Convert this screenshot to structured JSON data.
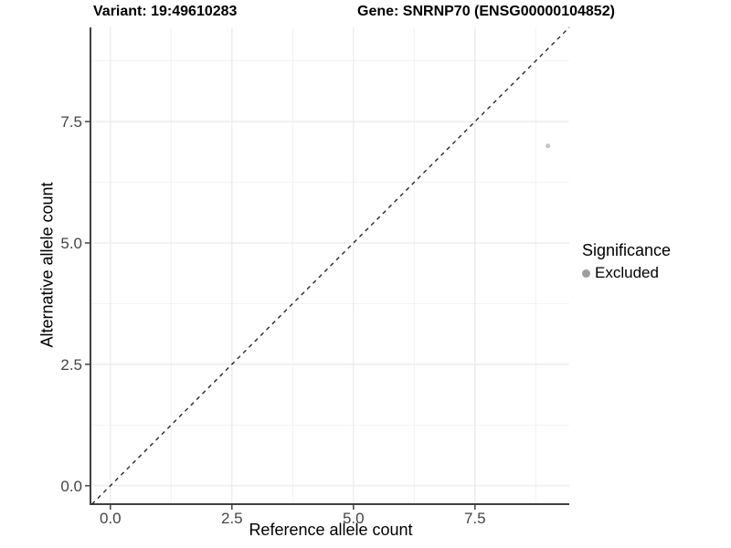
{
  "titles": {
    "variant": "Variant: 19:49610283",
    "gene": "Gene: SNRNP70 (ENSG00000104852)"
  },
  "chart_data": {
    "type": "scatter",
    "xlabel": "Reference allele count",
    "ylabel": "Alternative allele count",
    "xlim": [
      -0.41,
      9.44
    ],
    "ylim": [
      -0.38,
      9.44
    ],
    "x_ticks": [
      0.0,
      2.5,
      5.0,
      7.5
    ],
    "y_ticks": [
      0.0,
      2.5,
      5.0,
      7.5
    ],
    "x_minor_ticks": [
      1.25,
      3.75,
      6.25,
      8.75
    ],
    "y_minor_ticks": [
      1.25,
      3.75,
      6.25,
      8.75
    ],
    "grid": true,
    "points": [
      {
        "x": 9,
        "y": 7,
        "series": "Excluded"
      }
    ],
    "reference_line": {
      "type": "identity",
      "equation": "y = x",
      "style": "dashed"
    },
    "legend": {
      "title": "Significance",
      "position": "right",
      "entries": [
        {
          "label": "Excluded",
          "color": "#9e9e9e"
        }
      ]
    }
  },
  "colors": {
    "background": "#ffffff",
    "grid_major": "#e9e9e9",
    "grid_minor": "#f2f2f2",
    "axis_line": "#404040",
    "tick_mark": "#404040",
    "tick_label": "#454545",
    "dashed_line": "#1a1a1a",
    "point_fill": "#c6c6c6",
    "legend_key": "#9e9e9e"
  }
}
